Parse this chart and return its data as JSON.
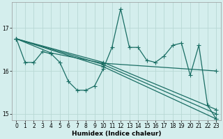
{
  "xlabel": "Humidex (Indice chaleur)",
  "bg_color": "#d4eeed",
  "grid_color": "#b8d8d4",
  "line_color": "#1a6e64",
  "xlim": [
    -0.5,
    23.5
  ],
  "ylim": [
    14.85,
    17.6
  ],
  "yticks": [
    15,
    16,
    17
  ],
  "xticks": [
    0,
    1,
    2,
    3,
    4,
    5,
    6,
    7,
    8,
    9,
    10,
    11,
    12,
    13,
    14,
    15,
    16,
    17,
    18,
    19,
    20,
    21,
    22,
    23
  ],
  "zigzag_x": [
    0,
    1,
    2,
    3,
    4,
    5,
    6,
    7,
    8,
    9,
    10,
    11,
    12,
    13,
    14,
    15,
    16,
    17,
    18,
    19,
    20,
    21,
    22,
    23
  ],
  "zigzag_y": [
    16.75,
    16.2,
    16.2,
    16.45,
    16.4,
    16.2,
    15.75,
    15.55,
    15.55,
    15.65,
    16.05,
    16.55,
    17.45,
    16.55,
    16.55,
    16.25,
    16.2,
    16.35,
    16.6,
    16.65,
    15.9,
    16.6,
    15.2,
    14.88
  ],
  "line1_x": [
    0,
    10,
    23
  ],
  "line1_y": [
    16.75,
    16.1,
    14.88
  ],
  "line2_x": [
    0,
    10,
    23
  ],
  "line2_y": [
    16.75,
    16.15,
    15.0
  ],
  "line3_x": [
    0,
    10,
    23
  ],
  "line3_y": [
    16.75,
    16.2,
    15.1
  ],
  "line4_x": [
    0,
    4,
    10,
    23
  ],
  "line4_y": [
    16.75,
    16.42,
    16.18,
    16.0
  ],
  "marker": "+",
  "markersize": 4,
  "linewidth": 0.9,
  "tick_fontsize": 5.5,
  "xlabel_fontsize": 6.5
}
